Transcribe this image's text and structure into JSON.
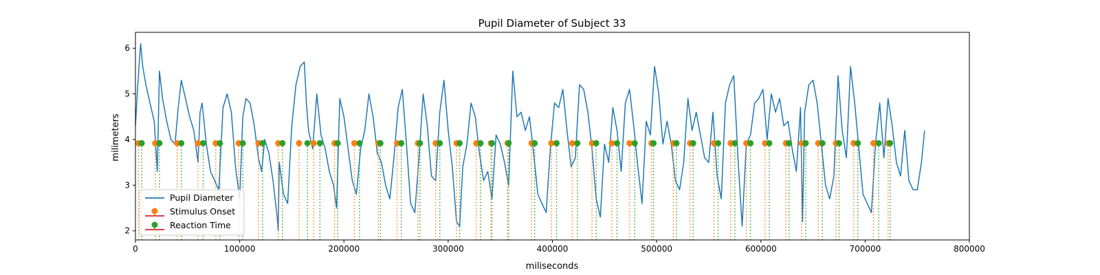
{
  "chart_data": {
    "type": "line",
    "title": "Pupil Diameter of Subject 33",
    "xlabel": "miliseconds",
    "ylabel": "milimeters",
    "xlim": [
      0,
      800000
    ],
    "ylim": [
      1.8,
      6.35
    ],
    "xticks": [
      0,
      100000,
      200000,
      300000,
      400000,
      500000,
      600000,
      700000,
      800000
    ],
    "yticks": [
      2,
      3,
      4,
      5,
      6
    ],
    "grid": false,
    "legend_position": "lower-left",
    "legend": [
      {
        "label": "Pupil Diameter",
        "kind": "line",
        "color": "#1f77b4"
      },
      {
        "label": "Stimulus Onset",
        "kind": "stem",
        "color": "#ff7f0e"
      },
      {
        "label": "Reaction Time",
        "kind": "stem",
        "color": "#2ca02c"
      }
    ],
    "series": [
      {
        "name": "Pupil Diameter",
        "color": "#1f77b4",
        "x": [
          0,
          2000,
          4000,
          5000,
          7000,
          10000,
          14000,
          18000,
          21000,
          23000,
          26000,
          30000,
          34000,
          38000,
          41000,
          44000,
          48000,
          52000,
          56000,
          60000,
          62000,
          64000,
          68000,
          72000,
          76000,
          80000,
          84000,
          88000,
          92000,
          96000,
          100000,
          103000,
          106000,
          110000,
          114000,
          118000,
          121000,
          124000,
          128000,
          132000,
          136000,
          137000,
          138000,
          142000,
          146000,
          150000,
          154000,
          158000,
          162000,
          164000,
          166000,
          170000,
          174000,
          178000,
          182000,
          186000,
          190000,
          193000,
          196000,
          200000,
          204000,
          208000,
          212000,
          216000,
          220000,
          224000,
          228000,
          232000,
          236000,
          240000,
          244000,
          248000,
          252000,
          256000,
          260000,
          264000,
          268000,
          272000,
          276000,
          280000,
          284000,
          288000,
          292000,
          296000,
          300000,
          304000,
          308000,
          311000,
          314000,
          318000,
          322000,
          326000,
          330000,
          334000,
          338000,
          342000,
          346000,
          350000,
          354000,
          358000,
          362000,
          366000,
          370000,
          374000,
          378000,
          382000,
          386000,
          390000,
          394000,
          398000,
          402000,
          406000,
          410000,
          414000,
          418000,
          422000,
          426000,
          430000,
          434000,
          438000,
          442000,
          446000,
          450000,
          454000,
          458000,
          462000,
          466000,
          470000,
          474000,
          478000,
          482000,
          486000,
          490000,
          494000,
          498000,
          502000,
          506000,
          510000,
          514000,
          518000,
          522000,
          526000,
          530000,
          534000,
          538000,
          542000,
          546000,
          550000,
          554000,
          558000,
          562000,
          566000,
          570000,
          574000,
          578000,
          582000,
          586000,
          590000,
          594000,
          598000,
          602000,
          606000,
          610000,
          614000,
          618000,
          622000,
          626000,
          630000,
          634000,
          638000,
          640000,
          642000,
          646000,
          650000,
          654000,
          658000,
          662000,
          666000,
          670000,
          674000,
          678000,
          682000,
          686000,
          690000,
          694000,
          698000,
          702000,
          706000,
          710000,
          714000,
          718000,
          722000,
          726000,
          730000,
          734000,
          738000,
          742000,
          746000,
          750000,
          754000,
          757000
        ],
        "values": [
          4.3,
          5.1,
          5.8,
          6.1,
          5.6,
          5.2,
          4.8,
          4.4,
          3.3,
          5.5,
          4.9,
          4.4,
          4.0,
          3.9,
          4.7,
          5.3,
          4.9,
          4.5,
          4.2,
          3.5,
          4.6,
          4.8,
          3.9,
          3.3,
          3.1,
          2.9,
          4.7,
          5.0,
          4.6,
          3.4,
          2.7,
          4.5,
          4.9,
          4.8,
          4.3,
          3.6,
          3.3,
          4.0,
          3.7,
          3.1,
          2.3,
          2.0,
          3.5,
          2.8,
          2.6,
          4.3,
          5.2,
          5.6,
          5.7,
          4.8,
          4.2,
          3.8,
          5.0,
          4.1,
          3.8,
          3.3,
          3.0,
          2.5,
          4.9,
          4.5,
          3.8,
          3.1,
          2.8,
          3.8,
          4.2,
          5.0,
          4.5,
          3.7,
          3.5,
          3.0,
          2.7,
          3.6,
          4.7,
          5.1,
          3.9,
          2.6,
          2.4,
          3.6,
          5.0,
          4.3,
          3.2,
          3.1,
          4.6,
          5.3,
          4.2,
          3.4,
          2.2,
          2.1,
          3.4,
          3.9,
          4.8,
          4.5,
          3.7,
          3.1,
          3.3,
          2.7,
          4.1,
          3.9,
          3.5,
          3.0,
          5.5,
          4.5,
          4.6,
          4.2,
          4.5,
          3.7,
          2.8,
          2.6,
          2.4,
          3.8,
          4.8,
          4.7,
          5.1,
          4.2,
          3.4,
          3.6,
          5.2,
          5.1,
          4.6,
          3.8,
          2.7,
          2.3,
          3.9,
          3.5,
          4.7,
          4.2,
          3.3,
          4.8,
          5.1,
          4.3,
          3.4,
          2.6,
          4.4,
          4.1,
          5.6,
          5.0,
          3.9,
          4.4,
          3.9,
          3.1,
          2.9,
          3.5,
          4.9,
          4.2,
          4.6,
          4.1,
          3.6,
          3.5,
          4.6,
          3.2,
          2.7,
          4.8,
          5.2,
          5.4,
          3.6,
          2.1,
          3.9,
          4.1,
          4.8,
          4.9,
          5.1,
          4.0,
          5.0,
          4.6,
          4.9,
          4.3,
          4.4,
          3.8,
          3.3,
          4.7,
          2.2,
          4.6,
          5.2,
          5.3,
          4.8,
          3.9,
          3.0,
          2.7,
          3.2,
          5.4,
          4.2,
          3.6,
          5.6,
          4.8,
          3.8,
          2.8,
          2.6,
          2.4,
          3.9,
          4.8,
          3.6,
          4.9,
          4.3,
          3.5,
          3.2,
          4.2,
          3.1,
          2.9,
          2.9,
          3.5,
          4.2
        ]
      }
    ],
    "stimulus_onset": {
      "name": "Stimulus Onset",
      "color": "#ff7f0e",
      "y": 3.92,
      "x": [
        3000,
        19000,
        40000,
        60000,
        77000,
        99000,
        118000,
        137000,
        157000,
        171000,
        191000,
        210000,
        233000,
        251000,
        271000,
        288000,
        308000,
        327000,
        341000,
        357000,
        380000,
        399000,
        419000,
        438000,
        457000,
        474000,
        495000,
        516000,
        532000,
        555000,
        571000,
        586000,
        604000,
        624000,
        639000,
        655000,
        672000,
        689000,
        708000,
        722000
      ]
    },
    "reaction_time": {
      "name": "Reaction Time",
      "color": "#2ca02c",
      "y": 3.92,
      "x": [
        6000,
        23000,
        44000,
        65000,
        81000,
        103000,
        122000,
        141000,
        165000,
        177000,
        194000,
        215000,
        235000,
        255000,
        273000,
        292000,
        311000,
        331000,
        342000,
        358000,
        383000,
        404000,
        424000,
        442000,
        462000,
        479000,
        497000,
        519000,
        535000,
        559000,
        575000,
        590000,
        608000,
        627000,
        643000,
        659000,
        675000,
        693000,
        713000,
        724000
      ]
    }
  }
}
